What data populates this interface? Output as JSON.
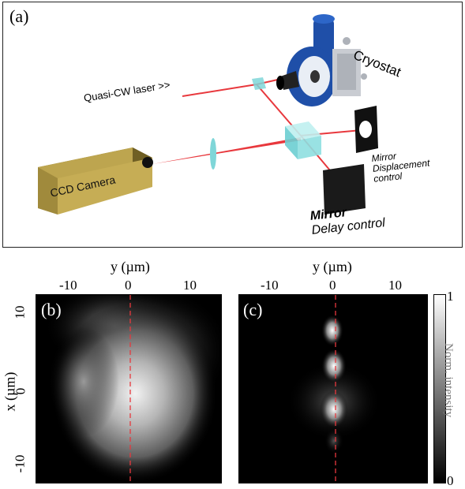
{
  "panel_a": {
    "label": "(a)",
    "labels": {
      "laser": "Quasi-CW laser >>",
      "cryostat": "Cryostat",
      "camera": "CCD Camera",
      "mirror_disp_1": "Mirror",
      "mirror_disp_2": "Displacement",
      "mirror_disp_3": "control",
      "mirror_delay_1": "Mirror",
      "mirror_delay_2": "Delay control"
    },
    "colors": {
      "beam": "#e8383d",
      "camera_body": "#b9a24f",
      "cryostat_blue": "#1f4fa8",
      "splitter": "#7fd6d8"
    }
  },
  "panel_b": {
    "label": "(b)"
  },
  "panel_c": {
    "label": "(c)"
  },
  "axes": {
    "y_title": "y (µm)",
    "x_title": "x (µm)",
    "y_ticks": [
      "-10",
      "0",
      "10"
    ],
    "x_ticks": [
      "10",
      "0",
      "-10"
    ]
  },
  "colorbar": {
    "max": "1",
    "min": "0",
    "title": "Norm. intensity"
  }
}
